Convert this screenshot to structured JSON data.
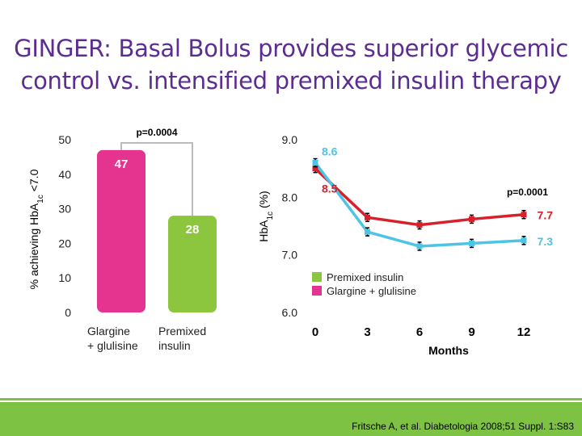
{
  "title_lines": [
    "GINGER: Basal Bolus provides superior glycemic",
    "control vs. intensified premixed insulin therapy"
  ],
  "citation": "Fritsche A, et al. Diabetologia 2008;51 Suppl. 1:S83",
  "colors": {
    "title": "#5c2d91",
    "glargine_glulisine": "#e4348f",
    "premixed": "#8cc63f",
    "line_premixed": "#d7202a",
    "line_glargine": "#4cc4e6",
    "band": "#7dc243"
  },
  "chart_data": [
    {
      "type": "bar",
      "ylabel_main": "% achieving HbA",
      "ylabel_sub": "1c",
      "ylabel_tail": " <7.0",
      "categories": [
        [
          "Glargine",
          "+ glulisine"
        ],
        [
          "Premixed",
          "insulin"
        ]
      ],
      "values": [
        47,
        28
      ],
      "value_labels": [
        "47",
        "28"
      ],
      "ylim": [
        0,
        50
      ],
      "yticks": [
        "0",
        "10",
        "20",
        "30",
        "40",
        "50"
      ],
      "pvalue": "p=0.0004",
      "grid": false
    },
    {
      "type": "line",
      "ylabel_main": "HbA",
      "ylabel_sub": "1c",
      "ylabel_tail": " (%)",
      "x": [
        0,
        3,
        6,
        9,
        12
      ],
      "xticks": [
        "0",
        "3",
        "6",
        "9",
        "12"
      ],
      "xlabel": "Months",
      "ylim": [
        6.0,
        9.0
      ],
      "yticks": [
        "6.0",
        "7.0",
        "8.0",
        "9.0"
      ],
      "series": [
        {
          "name": "Premixed insulin",
          "values": [
            8.5,
            7.65,
            7.52,
            7.62,
            7.7
          ]
        },
        {
          "name": "Glargine + glulisine",
          "values": [
            8.6,
            7.4,
            7.15,
            7.2,
            7.25
          ]
        }
      ],
      "annotations": {
        "start_glargine": "8.6",
        "start_premixed": "8.5",
        "end_premixed": "7.7",
        "end_glargine": "7.3",
        "pvalue": "p=0.0001"
      },
      "legend_position": "bottom-center",
      "grid": false
    }
  ]
}
